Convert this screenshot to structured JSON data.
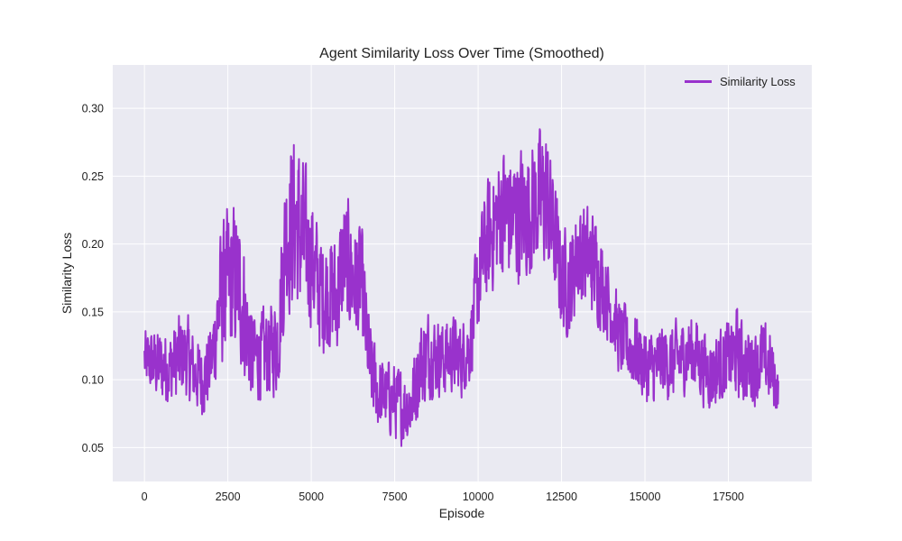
{
  "chart_data": {
    "type": "line",
    "title": "Agent Similarity Loss Over Time (Smoothed)",
    "xlabel": "Episode",
    "ylabel": "Similarity Loss",
    "xlim": [
      -950,
      20000
    ],
    "ylim": [
      0.025,
      0.332
    ],
    "xticks": [
      0,
      2500,
      5000,
      7500,
      10000,
      12500,
      15000,
      17500
    ],
    "xtick_labels": [
      "0",
      "2500",
      "5000",
      "7500",
      "10000",
      "12500",
      "15000",
      "17500"
    ],
    "yticks": [
      0.05,
      0.1,
      0.15,
      0.2,
      0.25,
      0.3
    ],
    "ytick_labels": [
      "0.05",
      "0.10",
      "0.15",
      "0.20",
      "0.25",
      "0.30"
    ],
    "grid": true,
    "legend_position": "top-right",
    "colors": {
      "line": "#9932cc",
      "plot_bg": "#eaeaf2",
      "grid": "#ffffff"
    },
    "series": [
      {
        "name": "Similarity Loss",
        "x": [
          0,
          250,
          500,
          750,
          1000,
          1250,
          1500,
          1750,
          2000,
          2250,
          2500,
          2750,
          3000,
          3250,
          3500,
          3750,
          4000,
          4250,
          4500,
          4750,
          5000,
          5250,
          5500,
          5750,
          6000,
          6250,
          6500,
          6750,
          7000,
          7250,
          7500,
          7750,
          8000,
          8250,
          8500,
          8750,
          9000,
          9250,
          9500,
          9750,
          10000,
          10250,
          10500,
          10750,
          11000,
          11250,
          11500,
          11750,
          12000,
          12250,
          12500,
          12750,
          13000,
          13250,
          13500,
          13750,
          14000,
          14250,
          14500,
          14750,
          15000,
          15250,
          15500,
          15750,
          16000,
          16250,
          16500,
          16750,
          17000,
          17250,
          17500,
          17750,
          18000,
          18250,
          18500,
          18750,
          19000
        ],
        "y": [
          0.115,
          0.112,
          0.11,
          0.108,
          0.115,
          0.118,
          0.105,
          0.1,
          0.112,
          0.155,
          0.17,
          0.175,
          0.15,
          0.115,
          0.118,
          0.12,
          0.13,
          0.21,
          0.22,
          0.2,
          0.19,
          0.165,
          0.165,
          0.16,
          0.19,
          0.175,
          0.17,
          0.11,
          0.09,
          0.088,
          0.085,
          0.08,
          0.082,
          0.11,
          0.12,
          0.118,
          0.115,
          0.12,
          0.115,
          0.125,
          0.17,
          0.2,
          0.215,
          0.225,
          0.22,
          0.222,
          0.225,
          0.23,
          0.235,
          0.21,
          0.175,
          0.17,
          0.195,
          0.19,
          0.185,
          0.17,
          0.15,
          0.13,
          0.125,
          0.12,
          0.11,
          0.108,
          0.115,
          0.112,
          0.115,
          0.12,
          0.12,
          0.11,
          0.105,
          0.11,
          0.115,
          0.12,
          0.11,
          0.11,
          0.115,
          0.11,
          0.09
        ],
        "amplitude": [
          0.02,
          0.022,
          0.025,
          0.025,
          0.028,
          0.028,
          0.025,
          0.025,
          0.025,
          0.045,
          0.05,
          0.05,
          0.045,
          0.03,
          0.03,
          0.03,
          0.035,
          0.055,
          0.06,
          0.055,
          0.045,
          0.04,
          0.04,
          0.04,
          0.045,
          0.04,
          0.04,
          0.03,
          0.025,
          0.025,
          0.025,
          0.025,
          0.025,
          0.03,
          0.03,
          0.025,
          0.025,
          0.025,
          0.025,
          0.025,
          0.035,
          0.04,
          0.04,
          0.045,
          0.045,
          0.045,
          0.045,
          0.045,
          0.05,
          0.04,
          0.035,
          0.035,
          0.035,
          0.035,
          0.035,
          0.03,
          0.025,
          0.025,
          0.025,
          0.025,
          0.025,
          0.025,
          0.025,
          0.025,
          0.025,
          0.025,
          0.025,
          0.025,
          0.025,
          0.025,
          0.025,
          0.03,
          0.025,
          0.025,
          0.025,
          0.025,
          0.015
        ]
      }
    ]
  }
}
